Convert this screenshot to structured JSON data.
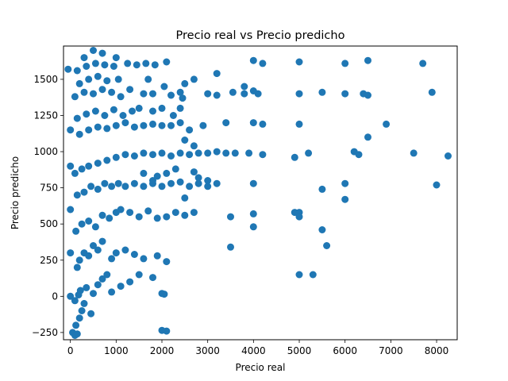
{
  "chart_data": {
    "type": "scatter",
    "title": "Precio real vs Precio predicho",
    "xlabel": "Precio real",
    "ylabel": "Precio predicho",
    "xlim": [
      -150,
      8450
    ],
    "ylim": [
      -300,
      1730
    ],
    "xticks": [
      0,
      1000,
      2000,
      3000,
      4000,
      5000,
      6000,
      7000,
      8000
    ],
    "xtick_labels": [
      "0",
      "1000",
      "2000",
      "3000",
      "4000",
      "5000",
      "6000",
      "7000",
      "8000"
    ],
    "yticks": [
      -250,
      0,
      250,
      500,
      750,
      1000,
      1250,
      1500
    ],
    "ytick_labels": [
      "−250",
      "0",
      "250",
      "500",
      "750",
      "1000",
      "1250",
      "1500"
    ],
    "grid": false,
    "marker_color": "#1f77b4",
    "points": [
      [
        150,
        -260
      ],
      [
        120,
        -200
      ],
      [
        200,
        -150
      ],
      [
        250,
        -100
      ],
      [
        300,
        -50
      ],
      [
        450,
        -120
      ],
      [
        100,
        -30
      ],
      [
        180,
        10
      ],
      [
        220,
        40
      ],
      [
        350,
        60
      ],
      [
        500,
        20
      ],
      [
        600,
        80
      ],
      [
        700,
        120
      ],
      [
        800,
        150
      ],
      [
        900,
        30
      ],
      [
        1100,
        70
      ],
      [
        1300,
        100
      ],
      [
        1500,
        150
      ],
      [
        1800,
        130
      ],
      [
        2000,
        20
      ],
      [
        2050,
        15
      ],
      [
        150,
        200
      ],
      [
        200,
        250
      ],
      [
        300,
        300
      ],
      [
        400,
        280
      ],
      [
        500,
        350
      ],
      [
        600,
        320
      ],
      [
        700,
        380
      ],
      [
        900,
        260
      ],
      [
        1000,
        300
      ],
      [
        1200,
        320
      ],
      [
        1400,
        290
      ],
      [
        1600,
        260
      ],
      [
        1900,
        280
      ],
      [
        2100,
        240
      ],
      [
        3500,
        340
      ],
      [
        5000,
        150
      ],
      [
        5300,
        150
      ],
      [
        5600,
        350
      ],
      [
        5500,
        460
      ],
      [
        120,
        450
      ],
      [
        250,
        500
      ],
      [
        400,
        520
      ],
      [
        550,
        480
      ],
      [
        700,
        560
      ],
      [
        850,
        540
      ],
      [
        1000,
        580
      ],
      [
        1100,
        600
      ],
      [
        1300,
        580
      ],
      [
        1500,
        550
      ],
      [
        1700,
        590
      ],
      [
        1900,
        540
      ],
      [
        2100,
        550
      ],
      [
        2300,
        580
      ],
      [
        2500,
        560
      ],
      [
        2700,
        580
      ],
      [
        3500,
        550
      ],
      [
        4000,
        570
      ],
      [
        4000,
        480
      ],
      [
        4900,
        580
      ],
      [
        5000,
        580
      ],
      [
        5000,
        550
      ],
      [
        6000,
        670
      ],
      [
        6000,
        780
      ],
      [
        5500,
        740
      ],
      [
        4000,
        780
      ],
      [
        150,
        700
      ],
      [
        300,
        720
      ],
      [
        450,
        760
      ],
      [
        600,
        740
      ],
      [
        750,
        780
      ],
      [
        900,
        760
      ],
      [
        1050,
        780
      ],
      [
        1200,
        760
      ],
      [
        1400,
        780
      ],
      [
        1600,
        760
      ],
      [
        1800,
        780
      ],
      [
        2000,
        760
      ],
      [
        2200,
        780
      ],
      [
        2400,
        790
      ],
      [
        2600,
        760
      ],
      [
        2800,
        780
      ],
      [
        3000,
        760
      ],
      [
        3200,
        780
      ],
      [
        2500,
        680
      ],
      [
        1800,
        800
      ],
      [
        2800,
        820
      ],
      [
        3000,
        800
      ],
      [
        1600,
        850
      ],
      [
        1900,
        830
      ],
      [
        2100,
        850
      ],
      [
        2300,
        880
      ],
      [
        2700,
        860
      ],
      [
        100,
        850
      ],
      [
        250,
        880
      ],
      [
        400,
        900
      ],
      [
        600,
        920
      ],
      [
        800,
        940
      ],
      [
        1000,
        960
      ],
      [
        1200,
        980
      ],
      [
        1400,
        970
      ],
      [
        1600,
        990
      ],
      [
        1800,
        980
      ],
      [
        2000,
        990
      ],
      [
        2200,
        970
      ],
      [
        2400,
        990
      ],
      [
        2600,
        980
      ],
      [
        2800,
        990
      ],
      [
        3000,
        990
      ],
      [
        3200,
        1000
      ],
      [
        3400,
        990
      ],
      [
        3600,
        990
      ],
      [
        3900,
        990
      ],
      [
        4200,
        980
      ],
      [
        4900,
        960
      ],
      [
        5200,
        990
      ],
      [
        6200,
        1000
      ],
      [
        6300,
        980
      ],
      [
        6500,
        1100
      ],
      [
        6900,
        1190
      ],
      [
        7500,
        990
      ],
      [
        8250,
        970
      ],
      [
        8000,
        770
      ],
      [
        2500,
        1080
      ],
      [
        2700,
        1040
      ],
      [
        200,
        1120
      ],
      [
        400,
        1150
      ],
      [
        600,
        1170
      ],
      [
        800,
        1160
      ],
      [
        1000,
        1180
      ],
      [
        1200,
        1200
      ],
      [
        1400,
        1170
      ],
      [
        1600,
        1180
      ],
      [
        1800,
        1190
      ],
      [
        2000,
        1180
      ],
      [
        2200,
        1180
      ],
      [
        2400,
        1200
      ],
      [
        2600,
        1150
      ],
      [
        2900,
        1180
      ],
      [
        3400,
        1200
      ],
      [
        4000,
        1200
      ],
      [
        4200,
        1190
      ],
      [
        5000,
        1190
      ],
      [
        150,
        1230
      ],
      [
        350,
        1260
      ],
      [
        550,
        1280
      ],
      [
        750,
        1250
      ],
      [
        950,
        1290
      ],
      [
        1150,
        1250
      ],
      [
        1350,
        1280
      ],
      [
        1500,
        1300
      ],
      [
        1800,
        1280
      ],
      [
        2000,
        1300
      ],
      [
        2250,
        1250
      ],
      [
        2400,
        1300
      ],
      [
        2450,
        1370
      ],
      [
        3000,
        1400
      ],
      [
        3200,
        1390
      ],
      [
        3550,
        1410
      ],
      [
        3800,
        1400
      ],
      [
        4100,
        1400
      ],
      [
        5000,
        1400
      ],
      [
        5500,
        1410
      ],
      [
        6000,
        1400
      ],
      [
        6400,
        1400
      ],
      [
        6500,
        1390
      ],
      [
        7900,
        1410
      ],
      [
        100,
        1380
      ],
      [
        300,
        1410
      ],
      [
        500,
        1400
      ],
      [
        700,
        1430
      ],
      [
        900,
        1410
      ],
      [
        1100,
        1380
      ],
      [
        1300,
        1430
      ],
      [
        1600,
        1400
      ],
      [
        1800,
        1400
      ],
      [
        2050,
        1450
      ],
      [
        2200,
        1390
      ],
      [
        2400,
        1410
      ],
      [
        200,
        1470
      ],
      [
        400,
        1500
      ],
      [
        600,
        1520
      ],
      [
        800,
        1490
      ],
      [
        1050,
        1500
      ],
      [
        1700,
        1500
      ],
      [
        2500,
        1470
      ],
      [
        2700,
        1500
      ],
      [
        3200,
        1540
      ],
      [
        3800,
        1450
      ],
      [
        4000,
        1420
      ],
      [
        150,
        1560
      ],
      [
        350,
        1590
      ],
      [
        550,
        1610
      ],
      [
        750,
        1600
      ],
      [
        950,
        1590
      ],
      [
        1250,
        1610
      ],
      [
        1450,
        1600
      ],
      [
        1650,
        1610
      ],
      [
        1850,
        1600
      ],
      [
        2100,
        1620
      ],
      [
        4000,
        1630
      ],
      [
        4200,
        1610
      ],
      [
        5000,
        1620
      ],
      [
        6000,
        1610
      ],
      [
        6500,
        1630
      ],
      [
        7700,
        1610
      ],
      [
        300,
        1650
      ],
      [
        500,
        1700
      ],
      [
        700,
        1680
      ],
      [
        1000,
        1650
      ],
      [
        -50,
        1570
      ],
      [
        0,
        1150
      ],
      [
        0,
        900
      ],
      [
        0,
        600
      ],
      [
        0,
        300
      ],
      [
        0,
        0
      ],
      [
        50,
        -250
      ],
      [
        100,
        -270
      ],
      [
        2100,
        -240
      ],
      [
        2000,
        -235
      ]
    ]
  }
}
